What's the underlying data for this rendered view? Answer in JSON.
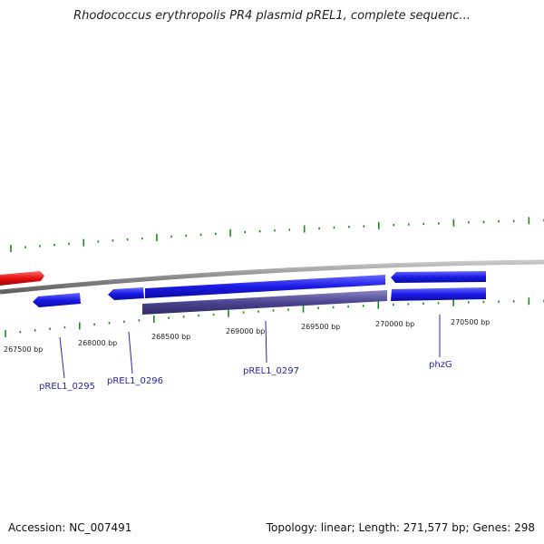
{
  "title": "Rhodococcus erythropolis PR4 plasmid pREL1, complete sequenc...",
  "accession_text": "Accession: NC_007491",
  "summary_text": "Topology: linear; Length: 271,577 bp; Genes: 298",
  "bp_ticks": [
    {
      "label": "267500 bp"
    },
    {
      "label": "268000 bp"
    },
    {
      "label": "268500 bp"
    },
    {
      "label": "269000 bp"
    },
    {
      "label": "269500 bp"
    },
    {
      "label": "270000 bp"
    },
    {
      "label": "270500 bp"
    }
  ],
  "genes": [
    {
      "label": "pREL1_0295"
    },
    {
      "label": "pREL1_0296"
    },
    {
      "label": "pREL1_0297"
    },
    {
      "label": "phzG"
    }
  ],
  "colors": {
    "backbone": "#8c8c8c",
    "gene_forward_red": "#e31010",
    "gene_blue": "#1a1ae6",
    "gene_cds_purple": "#4a4590",
    "tick_green": "#1a8a1a",
    "label_blue": "#2626a8"
  }
}
